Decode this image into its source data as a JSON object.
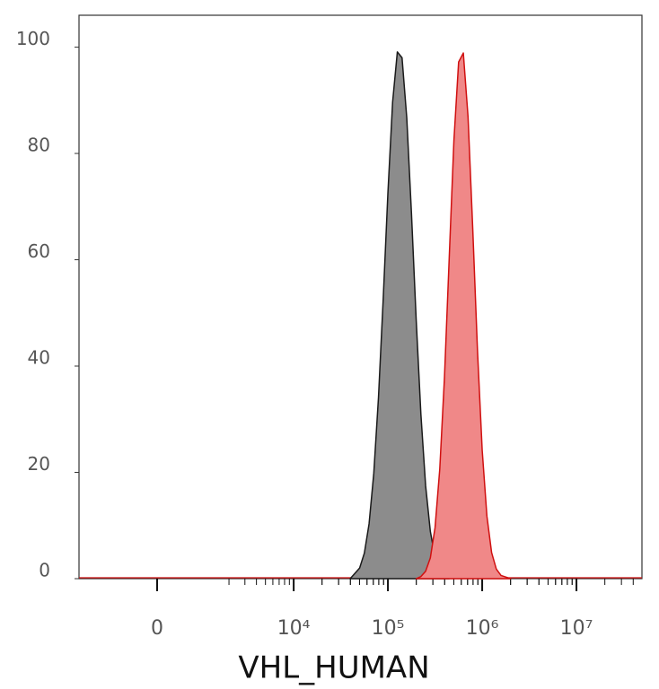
{
  "chart_data": {
    "type": "histogram",
    "x_label": "VHL_HUMAN",
    "xscale": "biexponential",
    "xlim": [
      -2350,
      49500000
    ],
    "xticks": [
      {
        "value": 0,
        "label": "0"
      },
      {
        "value": 10000,
        "label": "10⁴"
      },
      {
        "value": 100000,
        "label": "10⁵"
      },
      {
        "value": 1000000,
        "label": "10⁶"
      },
      {
        "value": 10000000,
        "label": "10⁷"
      }
    ],
    "ylim": [
      0,
      106
    ],
    "yticks": [
      0,
      20,
      40,
      60,
      80,
      100
    ],
    "series": [
      {
        "color": "#8c8c8c",
        "line_color": "#1a1a1a",
        "x": [
          39811,
          50119,
          56234,
          63096,
          70795,
          79433,
          89125,
          100000,
          112202,
          125893,
          141254,
          158489,
          177828,
          199526,
          223872,
          251189,
          281838,
          316228,
          354813,
          446684
        ],
        "values": [
          0,
          2.0,
          4.8,
          10.3,
          19.8,
          34.1,
          52.6,
          72.6,
          89.7,
          99.1,
          98.0,
          86.7,
          68.7,
          48.7,
          30.9,
          17.5,
          8.9,
          4.0,
          1.6,
          0
        ]
      },
      {
        "color": "#f08888",
        "line_color": "#d01010",
        "x": [
          199526,
          223872,
          251189,
          281838,
          316228,
          354813,
          398107,
          446684,
          501187,
          562341,
          630957,
          707946,
          794328,
          891251,
          1000000,
          1122018,
          1258925,
          1412538,
          1584893,
          1995262
        ],
        "values": [
          0,
          0.4,
          1.4,
          3.9,
          9.6,
          20.6,
          37.9,
          60.2,
          82.4,
          97.2,
          98.9,
          86.9,
          65.8,
          43.0,
          24.2,
          11.8,
          4.9,
          1.8,
          0.6,
          0
        ]
      }
    ]
  }
}
